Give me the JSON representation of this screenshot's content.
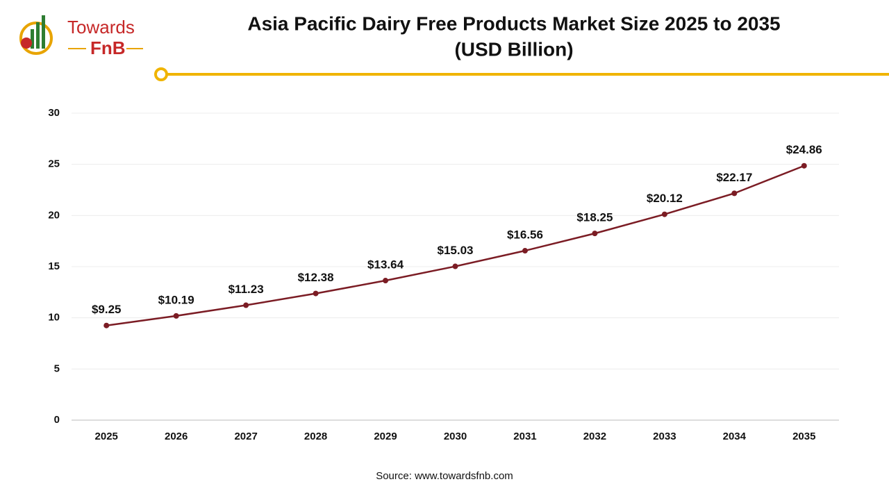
{
  "logo": {
    "line1": "Towards",
    "line2": "FnB"
  },
  "chart_data": {
    "type": "line",
    "title": [
      "Asia Pacific Dairy Free Products Market Size 2025 to 2035",
      "(USD Billion)"
    ],
    "categories": [
      "2025",
      "2026",
      "2027",
      "2028",
      "2029",
      "2030",
      "2031",
      "2032",
      "2033",
      "2034",
      "2035"
    ],
    "values": [
      9.25,
      10.19,
      11.23,
      12.38,
      13.64,
      15.03,
      16.56,
      18.25,
      20.12,
      22.17,
      24.86
    ],
    "value_labels": [
      "$9.25",
      "$10.19",
      "$11.23",
      "$12.38",
      "$13.64",
      "$15.03",
      "$16.56",
      "$18.25",
      "$20.12",
      "$22.17",
      "$24.86"
    ],
    "color": "#7b1c24",
    "ylim": [
      0,
      30
    ],
    "yticks": [
      0,
      5,
      10,
      15,
      20,
      25,
      30
    ],
    "grid": true,
    "source": "Source: www.towardsfnb.com"
  }
}
